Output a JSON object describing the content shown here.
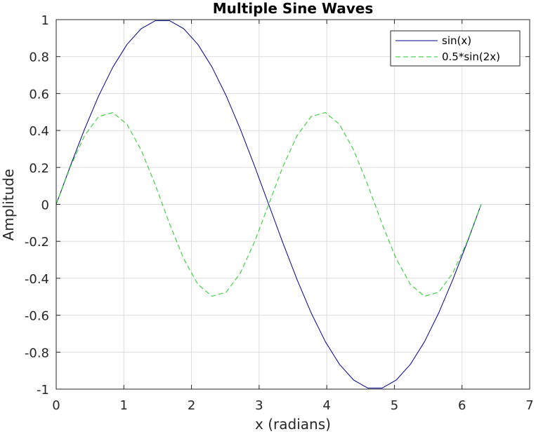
{
  "chart_data": {
    "type": "line",
    "title": "Multiple Sine Waves",
    "xlabel": "x (radians)",
    "ylabel": "Amplitude",
    "xlim": [
      0,
      7
    ],
    "ylim": [
      -1,
      1
    ],
    "xticks": [
      0,
      1,
      2,
      3,
      4,
      5,
      6,
      7
    ],
    "xtick_labels": [
      "0",
      "1",
      "2",
      "3",
      "4",
      "5",
      "6",
      "7"
    ],
    "yticks": [
      -1,
      -0.8,
      -0.6,
      -0.4,
      -0.2,
      0,
      0.2,
      0.4,
      0.6,
      0.8,
      1
    ],
    "ytick_labels": [
      "-1",
      "-0.8",
      "-0.6",
      "-0.4",
      "-0.2",
      "0",
      "0.2",
      "0.4",
      "0.6",
      "0.8",
      "1"
    ],
    "grid": true,
    "legend_position": "top-right",
    "x": [
      0,
      0.2094,
      0.4189,
      0.6283,
      0.8378,
      1.0472,
      1.2566,
      1.4661,
      1.6755,
      1.885,
      2.0944,
      2.3038,
      2.5133,
      2.7227,
      2.9322,
      3.1416,
      3.351,
      3.5605,
      3.7699,
      3.9794,
      4.1888,
      4.3982,
      4.6077,
      4.8171,
      5.0265,
      5.236,
      5.4454,
      5.6549,
      5.8643,
      6.0737,
      6.2832
    ],
    "series": [
      {
        "name": "sin(x)",
        "color": "#00008b",
        "dash": "solid",
        "values": [
          0,
          0.2079,
          0.4067,
          0.5878,
          0.7431,
          0.866,
          0.9511,
          0.9945,
          0.9945,
          0.9511,
          0.866,
          0.7431,
          0.5878,
          0.4067,
          0.2079,
          0,
          -0.2079,
          -0.4067,
          -0.5878,
          -0.7431,
          -0.866,
          -0.9511,
          -0.9945,
          -0.9945,
          -0.9511,
          -0.866,
          -0.7431,
          -0.5878,
          -0.4067,
          -0.2079,
          0
        ]
      },
      {
        "name": "0.5*sin(2x)",
        "color": "#22cc22",
        "dash": "dashed",
        "values": [
          0,
          0.2034,
          0.3716,
          0.4755,
          0.4973,
          0.433,
          0.2939,
          0.1045,
          -0.1045,
          -0.2939,
          -0.433,
          -0.4973,
          -0.4755,
          -0.3716,
          -0.2034,
          0,
          0.2034,
          0.3716,
          0.4755,
          0.4973,
          0.433,
          0.2939,
          0.1045,
          -0.1045,
          -0.2939,
          -0.433,
          -0.4973,
          -0.4755,
          -0.3716,
          -0.2034,
          0
        ]
      }
    ]
  }
}
